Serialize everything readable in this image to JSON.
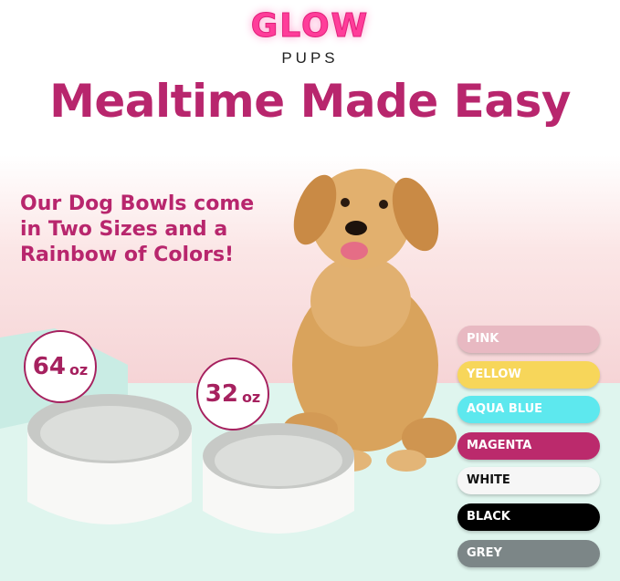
{
  "brand": {
    "logo_word": "GLOW",
    "logo_sub": "PUPS"
  },
  "headline": "Mealtime Made Easy",
  "subheading": [
    "Our Dog Bowls come",
    "in Two Sizes and a",
    "Rainbow of Colors!"
  ],
  "sizes": [
    {
      "value": "64",
      "unit": "oz"
    },
    {
      "value": "32",
      "unit": "oz"
    }
  ],
  "colors": [
    {
      "label": "PINK",
      "bg": "#e8b9c2",
      "fg": "#ffffff"
    },
    {
      "label": "YELLOW",
      "bg": "#f7d65a",
      "fg": "#ffffff"
    },
    {
      "label": "AQUA BLUE",
      "bg": "#5de8ee",
      "fg": "#ffffff"
    },
    {
      "label": "MAGENTA",
      "bg": "#bb2a6c",
      "fg": "#ffffff"
    },
    {
      "label": "WHITE",
      "bg": "#f6f6f6",
      "fg": "#111111"
    },
    {
      "label": "BLACK",
      "bg": "#000000",
      "fg": "#ffffff"
    },
    {
      "label": "GREY",
      "bg": "#7c8687",
      "fg": "#ffffff"
    }
  ]
}
